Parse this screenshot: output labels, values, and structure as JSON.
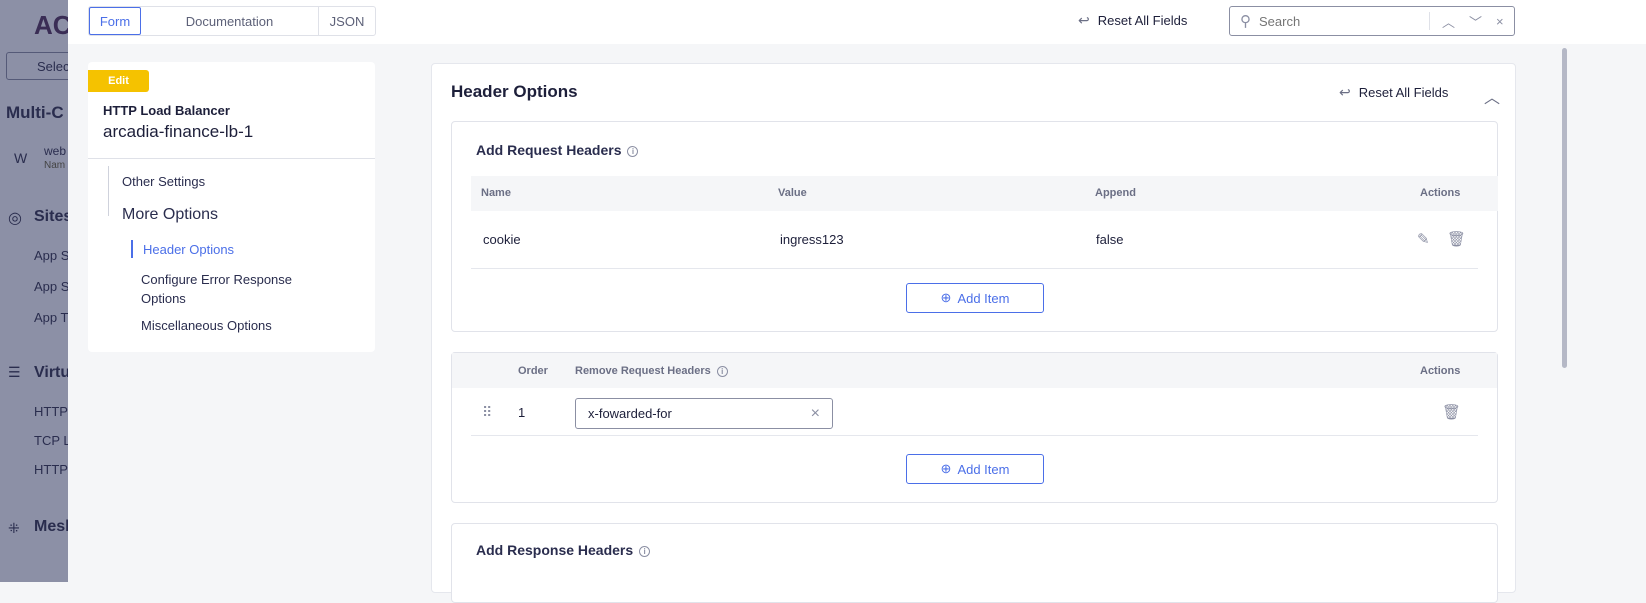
{
  "background_sidebar": {
    "logo": "AC",
    "select": "Selec",
    "title": "Multi-C",
    "workspace": {
      "avatar": "W",
      "name": "web",
      "sub": "Nam"
    },
    "sections": [
      {
        "label": "Sites",
        "items": [
          "App S",
          "App S",
          "App T"
        ]
      },
      {
        "label": "Virtu",
        "items": [
          "HTTP",
          "TCP L",
          "HTTP"
        ]
      },
      {
        "label": "Mesh",
        "items": []
      }
    ]
  },
  "tabs": [
    "Form",
    "Documentation",
    "JSON"
  ],
  "top": {
    "reset_label": "Reset All Fields",
    "search_placeholder": "Search"
  },
  "nav": {
    "badge": "Edit",
    "type": "HTTP Load Balancer",
    "name": "arcadia-finance-lb-1",
    "items": [
      "Other Settings",
      "More Options"
    ],
    "subitems": [
      "Header Options",
      "Configure Error Response Options",
      "Miscellaneous Options"
    ],
    "active": "Header Options"
  },
  "section": {
    "title": "Header Options",
    "reset_label": "Reset All Fields",
    "add_request": {
      "title": "Add Request Headers",
      "columns": [
        "Name",
        "Value",
        "Append",
        "Actions"
      ],
      "rows": [
        {
          "name": "cookie",
          "value": "ingress123",
          "append": "false"
        }
      ],
      "add_label": "Add Item"
    },
    "remove_request": {
      "columns": [
        "Order",
        "Remove Request Headers",
        "Actions"
      ],
      "rows": [
        {
          "order": "1",
          "value": "x-fowarded-for"
        }
      ],
      "add_label": "Add Item"
    },
    "add_response": {
      "title": "Add Response Headers"
    }
  },
  "colors": {
    "accent": "#4b6fe8",
    "badge": "#f5c200"
  }
}
